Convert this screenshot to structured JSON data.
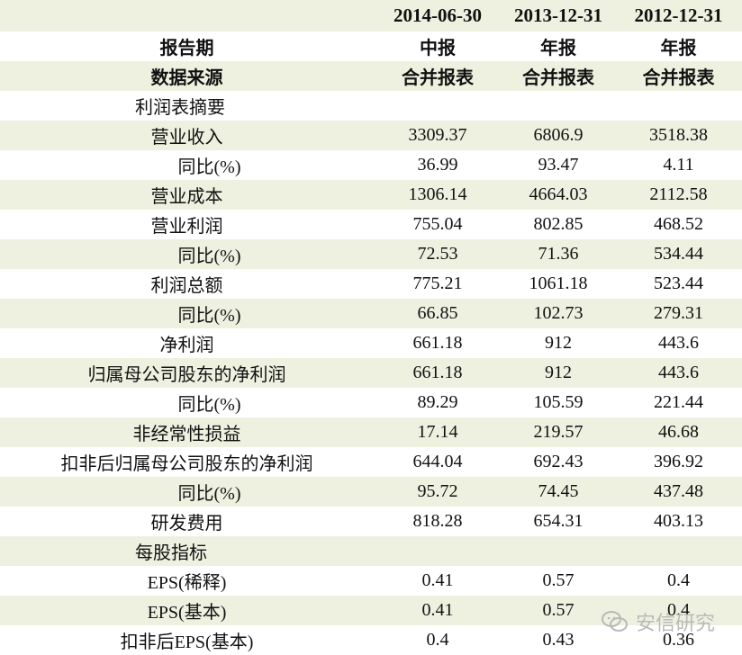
{
  "columns": [
    "2014-06-30",
    "2013-12-31",
    "2012-12-31"
  ],
  "rows": [
    {
      "label": "报告期",
      "values": [
        "中报",
        "年报",
        "年报"
      ],
      "style": "bold"
    },
    {
      "label": "数据来源",
      "values": [
        "合并报表",
        "合并报表",
        "合并报表"
      ],
      "style": "bold"
    },
    {
      "label": "利润表摘要",
      "values": [
        "",
        "",
        ""
      ],
      "style": "section"
    },
    {
      "label": "营业收入",
      "values": [
        "3309.37",
        "6806.9",
        "3518.38"
      ],
      "style": "normal"
    },
    {
      "label": "同比(%)",
      "values": [
        "36.99",
        "93.47",
        "4.11"
      ],
      "style": "sub"
    },
    {
      "label": "营业成本",
      "values": [
        "1306.14",
        "4664.03",
        "2112.58"
      ],
      "style": "normal"
    },
    {
      "label": "营业利润",
      "values": [
        "755.04",
        "802.85",
        "468.52"
      ],
      "style": "normal"
    },
    {
      "label": "同比(%)",
      "values": [
        "72.53",
        "71.36",
        "534.44"
      ],
      "style": "sub"
    },
    {
      "label": "利润总额",
      "values": [
        "775.21",
        "1061.18",
        "523.44"
      ],
      "style": "normal"
    },
    {
      "label": "同比(%)",
      "values": [
        "66.85",
        "102.73",
        "279.31"
      ],
      "style": "sub"
    },
    {
      "label": "净利润",
      "values": [
        "661.18",
        "912",
        "443.6"
      ],
      "style": "normal"
    },
    {
      "label": "归属母公司股东的净利润",
      "values": [
        "661.18",
        "912",
        "443.6"
      ],
      "style": "normal"
    },
    {
      "label": "同比(%)",
      "values": [
        "89.29",
        "105.59",
        "221.44"
      ],
      "style": "sub"
    },
    {
      "label": "非经常性损益",
      "values": [
        "17.14",
        "219.57",
        "46.68"
      ],
      "style": "normal"
    },
    {
      "label": "扣非后归属母公司股东的净利润",
      "values": [
        "644.04",
        "692.43",
        "396.92"
      ],
      "style": "normal"
    },
    {
      "label": "同比(%)",
      "values": [
        "95.72",
        "74.45",
        "437.48"
      ],
      "style": "sub"
    },
    {
      "label": "研发费用",
      "values": [
        "818.28",
        "654.31",
        "403.13"
      ],
      "style": "normal"
    },
    {
      "label": "每股指标",
      "values": [
        "",
        "",
        ""
      ],
      "style": "section"
    },
    {
      "label": "EPS(稀释)",
      "values": [
        "0.41",
        "0.57",
        "0.4"
      ],
      "style": "normal"
    },
    {
      "label": "EPS(基本)",
      "values": [
        "0.41",
        "0.57",
        "0.4"
      ],
      "style": "normal"
    },
    {
      "label": "扣非后EPS(基本)",
      "values": [
        "0.4",
        "0.43",
        "0.36"
      ],
      "style": "normal"
    }
  ],
  "watermark": {
    "text": "安信研究",
    "icon": "wechat-icon"
  },
  "colors": {
    "row_tint": "#eef1e0",
    "text": "#111111",
    "watermark": "#b9b9b9"
  }
}
